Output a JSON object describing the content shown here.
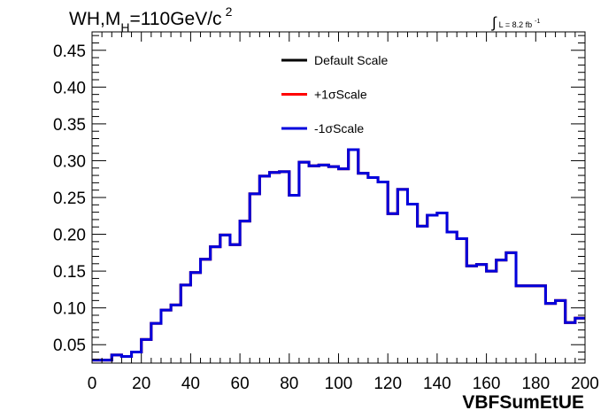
{
  "chart_data": {
    "type": "line",
    "title_main": "WH,M",
    "title_sub": "H",
    "title_rest": "=110GeV/c",
    "title_sup": "2",
    "lumi_prefix": "∫",
    "lumi_text": "L = 8.2 fb",
    "lumi_sup": "-1",
    "xlabel": "VBFSumEtUE",
    "ylabel": "",
    "xlim": [
      0,
      200
    ],
    "ylim": [
      0.025,
      0.475
    ],
    "x_ticks": [
      0,
      20,
      40,
      60,
      80,
      100,
      120,
      140,
      160,
      180,
      200
    ],
    "x_tick_labels": [
      "0",
      "20",
      "40",
      "60",
      "80",
      "100",
      "120",
      "140",
      "160",
      "180",
      "200"
    ],
    "y_ticks": [
      0.05,
      0.1,
      0.15,
      0.2,
      0.25,
      0.3,
      0.35,
      0.4,
      0.45
    ],
    "y_tick_labels": [
      "0.05",
      "0.10",
      "0.15",
      "0.20",
      "0.25",
      "0.30",
      "0.35",
      "0.40",
      "0.45"
    ],
    "bin_width": 4,
    "bin_edges_start": 0,
    "legend_position": "top-center",
    "series": [
      {
        "name": "Default Scale",
        "color": "#000000",
        "values": [
          0.029,
          0.029,
          0.036,
          0.034,
          0.04,
          0.057,
          0.079,
          0.097,
          0.104,
          0.131,
          0.148,
          0.166,
          0.183,
          0.199,
          0.186,
          0.218,
          0.255,
          0.279,
          0.284,
          0.285,
          0.253,
          0.298,
          0.293,
          0.294,
          0.292,
          0.289,
          0.315,
          0.283,
          0.277,
          0.271,
          0.228,
          0.261,
          0.241,
          0.211,
          0.226,
          0.229,
          0.203,
          0.194,
          0.157,
          0.159,
          0.15,
          0.165,
          0.175,
          0.13,
          0.13,
          0.13,
          0.106,
          0.11,
          0.08,
          0.086
        ]
      },
      {
        "name": "+1σScale",
        "color": "#ff0000",
        "values": [
          0.029,
          0.029,
          0.036,
          0.034,
          0.04,
          0.057,
          0.079,
          0.097,
          0.104,
          0.131,
          0.148,
          0.166,
          0.183,
          0.199,
          0.186,
          0.218,
          0.255,
          0.279,
          0.284,
          0.285,
          0.253,
          0.298,
          0.293,
          0.294,
          0.292,
          0.289,
          0.315,
          0.283,
          0.277,
          0.271,
          0.228,
          0.261,
          0.241,
          0.211,
          0.226,
          0.229,
          0.203,
          0.194,
          0.157,
          0.159,
          0.15,
          0.165,
          0.175,
          0.13,
          0.13,
          0.13,
          0.106,
          0.11,
          0.08,
          0.086
        ]
      },
      {
        "name": "-1σScale",
        "color": "#0000dd",
        "values": [
          0.029,
          0.029,
          0.036,
          0.034,
          0.04,
          0.057,
          0.079,
          0.097,
          0.104,
          0.131,
          0.148,
          0.166,
          0.183,
          0.199,
          0.186,
          0.218,
          0.255,
          0.279,
          0.284,
          0.285,
          0.253,
          0.298,
          0.293,
          0.294,
          0.292,
          0.289,
          0.315,
          0.283,
          0.277,
          0.271,
          0.228,
          0.261,
          0.241,
          0.211,
          0.226,
          0.229,
          0.203,
          0.194,
          0.157,
          0.159,
          0.15,
          0.165,
          0.175,
          0.13,
          0.13,
          0.13,
          0.106,
          0.11,
          0.08,
          0.086
        ]
      }
    ]
  }
}
